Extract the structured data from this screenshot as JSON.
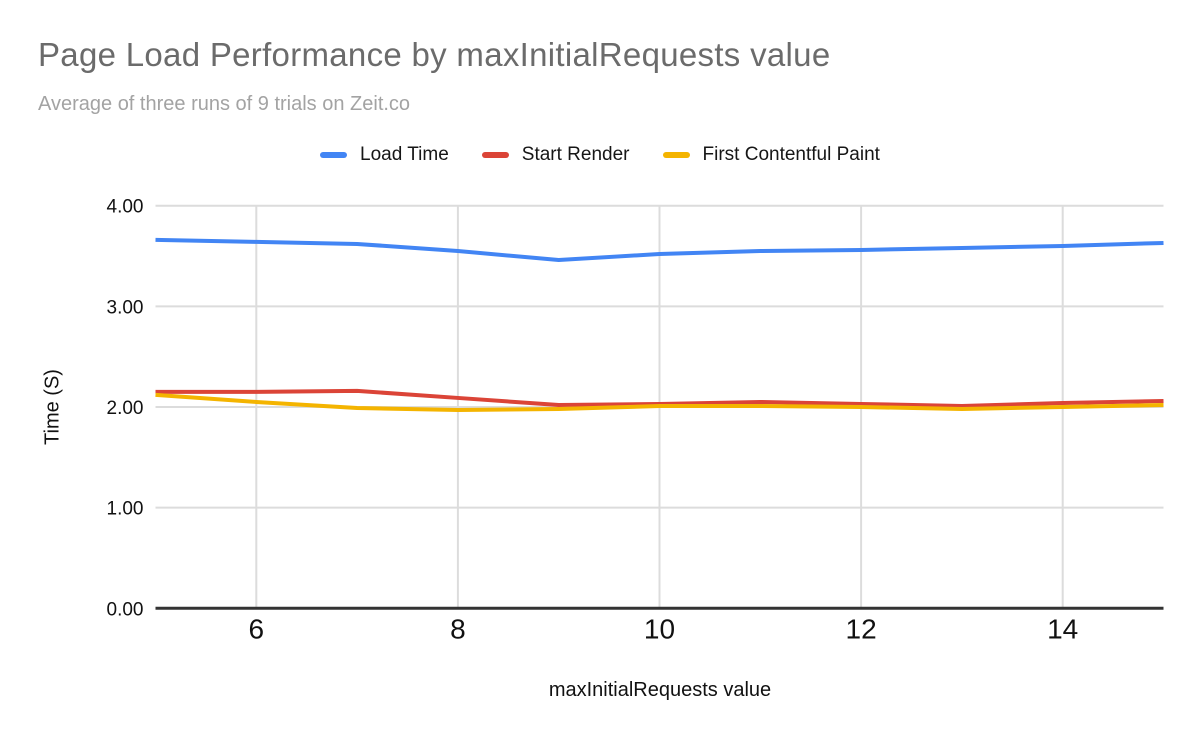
{
  "chart_data": {
    "type": "line",
    "title": "Page Load Performance by maxInitialRequests value",
    "subtitle": "Average of three runs of 9 trials on Zeit.co",
    "xlabel": "maxInitialRequests value",
    "ylabel": "Time (S)",
    "xlim": [
      5,
      15
    ],
    "ylim": [
      0,
      4
    ],
    "grid": true,
    "legend_position": "top",
    "x": [
      5,
      6,
      7,
      8,
      9,
      10,
      11,
      12,
      13,
      14,
      15
    ],
    "series": [
      {
        "name": "Load Time",
        "color": "#4285f4",
        "values": [
          3.66,
          3.64,
          3.62,
          3.55,
          3.46,
          3.52,
          3.55,
          3.56,
          3.58,
          3.6,
          3.63
        ]
      },
      {
        "name": "Start Render",
        "color": "#db4437",
        "values": [
          2.15,
          2.15,
          2.16,
          2.09,
          2.02,
          2.03,
          2.05,
          2.03,
          2.01,
          2.04,
          2.06
        ]
      },
      {
        "name": "First Contentful Paint",
        "color": "#f4b400",
        "values": [
          2.12,
          2.05,
          1.99,
          1.97,
          1.98,
          2.01,
          2.01,
          2.0,
          1.98,
          2.0,
          2.02
        ]
      }
    ],
    "x_ticks": [
      {
        "value": 6,
        "label": "6"
      },
      {
        "value": 8,
        "label": "8"
      },
      {
        "value": 10,
        "label": "10"
      },
      {
        "value": 12,
        "label": "12"
      },
      {
        "value": 14,
        "label": "14"
      }
    ],
    "y_ticks": [
      {
        "value": 0,
        "label": "0.00"
      },
      {
        "value": 1,
        "label": "1.00"
      },
      {
        "value": 2,
        "label": "2.00"
      },
      {
        "value": 3,
        "label": "3.00"
      },
      {
        "value": 4,
        "label": "4.00"
      }
    ]
  },
  "style": {
    "grid_color": "#dcdcdc",
    "axis_line_color": "#333333",
    "tick_label_color": "#111111"
  }
}
